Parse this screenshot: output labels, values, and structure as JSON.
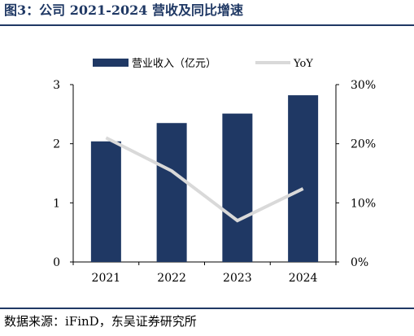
{
  "figure": {
    "title": "图3：公司 2021-2024 营收及同比增速",
    "source": "数据来源：iFinD，东吴证券研究所"
  },
  "chart_data": {
    "type": "bar",
    "categories": [
      "2021",
      "2022",
      "2023",
      "2024"
    ],
    "series": [
      {
        "name": "营业收入（亿元）",
        "type": "bar",
        "axis": "left",
        "values": [
          2.04,
          2.35,
          2.51,
          2.82
        ],
        "color": "#1f3864"
      },
      {
        "name": "YoY",
        "type": "line",
        "axis": "right",
        "values": [
          21.0,
          15.4,
          7.0,
          12.4
        ],
        "color": "#d9d9d9"
      }
    ],
    "y_left": {
      "ticks": [
        "0",
        "1",
        "2",
        "3"
      ],
      "ylim": [
        0,
        3
      ]
    },
    "y_right": {
      "ticks": [
        "0%",
        "10%",
        "20%",
        "30%"
      ],
      "ylim": [
        0,
        30
      ]
    },
    "legend_position": "top",
    "grid": false
  }
}
